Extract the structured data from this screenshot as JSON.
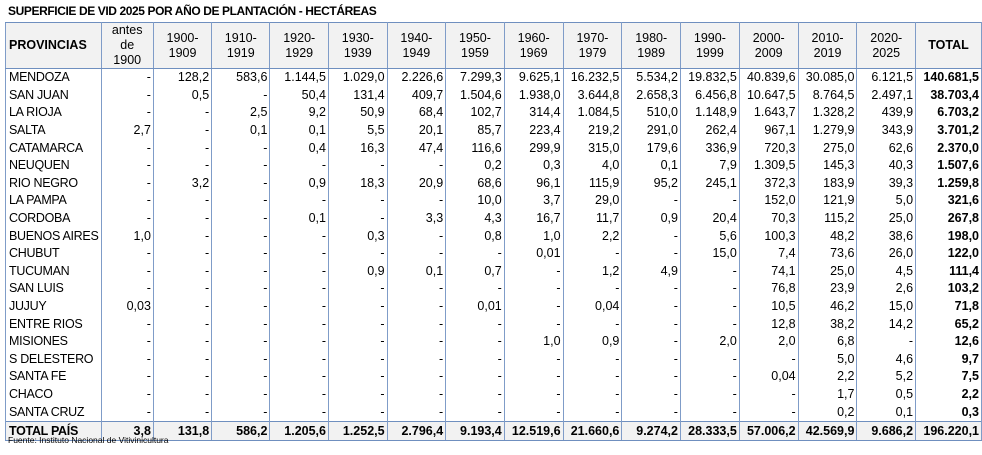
{
  "title": "SUPERFICIE  DE VID 2025 POR AÑO DE PLANTACIÓN  - HECTÁREAS",
  "headers": [
    "PROVINCIAS",
    "antes de 1900",
    "1900-1909",
    "1910-1919",
    "1920-1929",
    "1930-1939",
    "1940-1949",
    "1950-1959",
    "1960-1969",
    "1970-1979",
    "1980-1989",
    "1990-1999",
    "2000-2009",
    "2010-2019",
    "2020-2025",
    "TOTAL"
  ],
  "rows": [
    [
      "MENDOZA",
      "-",
      "128,2",
      "583,6",
      "1.144,5",
      "1.029,0",
      "2.226,6",
      "7.299,3",
      "9.625,1",
      "16.232,5",
      "5.534,2",
      "19.832,5",
      "40.839,6",
      "30.085,0",
      "6.121,5",
      "140.681,5"
    ],
    [
      "SAN JUAN",
      "-",
      "0,5",
      "-",
      "50,4",
      "131,4",
      "409,7",
      "1.504,6",
      "1.938,0",
      "3.644,8",
      "2.658,3",
      "6.456,8",
      "10.647,5",
      "8.764,5",
      "2.497,1",
      "38.703,4"
    ],
    [
      "LA RIOJA",
      "-",
      "-",
      "2,5",
      "9,2",
      "50,9",
      "68,4",
      "102,7",
      "314,4",
      "1.084,5",
      "510,0",
      "1.148,9",
      "1.643,7",
      "1.328,2",
      "439,9",
      "6.703,2"
    ],
    [
      "SALTA",
      "2,7",
      "-",
      "0,1",
      "0,1",
      "5,5",
      "20,1",
      "85,7",
      "223,4",
      "219,2",
      "291,0",
      "262,4",
      "967,1",
      "1.279,9",
      "343,9",
      "3.701,2"
    ],
    [
      "CATAMARCA",
      "-",
      "-",
      "-",
      "0,4",
      "16,3",
      "47,4",
      "116,6",
      "299,9",
      "315,0",
      "179,6",
      "336,9",
      "720,3",
      "275,0",
      "62,6",
      "2.370,0"
    ],
    [
      "NEUQUEN",
      "-",
      "-",
      "-",
      "-",
      "-",
      "-",
      "0,2",
      "0,3",
      "4,0",
      "0,1",
      "7,9",
      "1.309,5",
      "145,3",
      "40,3",
      "1.507,6"
    ],
    [
      "RIO NEGRO",
      "-",
      "3,2",
      "-",
      "0,9",
      "18,3",
      "20,9",
      "68,6",
      "96,1",
      "115,9",
      "95,2",
      "245,1",
      "372,3",
      "183,9",
      "39,3",
      "1.259,8"
    ],
    [
      "LA PAMPA",
      "-",
      "-",
      "-",
      "-",
      "-",
      "-",
      "10,0",
      "3,7",
      "29,0",
      "-",
      "-",
      "152,0",
      "121,9",
      "5,0",
      "321,6"
    ],
    [
      "CORDOBA",
      "-",
      "-",
      "-",
      "0,1",
      "-",
      "3,3",
      "4,3",
      "16,7",
      "11,7",
      "0,9",
      "20,4",
      "70,3",
      "115,2",
      "25,0",
      "267,8"
    ],
    [
      "BUENOS AIRES",
      "1,0",
      "-",
      "-",
      "-",
      "0,3",
      "-",
      "0,8",
      "1,0",
      "2,2",
      "-",
      "5,6",
      "100,3",
      "48,2",
      "38,6",
      "198,0"
    ],
    [
      "CHUBUT",
      "-",
      "-",
      "-",
      "-",
      "-",
      "-",
      "-",
      "0,01",
      "-",
      "-",
      "15,0",
      "7,4",
      "73,6",
      "26,0",
      "122,0"
    ],
    [
      "TUCUMAN",
      "-",
      "-",
      "-",
      "-",
      "0,9",
      "0,1",
      "0,7",
      "-",
      "1,2",
      "4,9",
      "-",
      "74,1",
      "25,0",
      "4,5",
      "111,4"
    ],
    [
      "SAN LUIS",
      "-",
      "-",
      "-",
      "-",
      "-",
      "-",
      "-",
      "-",
      "-",
      "-",
      "-",
      "76,8",
      "23,9",
      "2,6",
      "103,2"
    ],
    [
      "JUJUY",
      "0,03",
      "-",
      "-",
      "-",
      "-",
      "-",
      "0,01",
      "-",
      "0,04",
      "-",
      "-",
      "10,5",
      "46,2",
      "15,0",
      "71,8"
    ],
    [
      "ENTRE RIOS",
      "-",
      "-",
      "-",
      "-",
      "-",
      "-",
      "-",
      "-",
      "-",
      "-",
      "-",
      "12,8",
      "38,2",
      "14,2",
      "65,2"
    ],
    [
      "MISIONES",
      "-",
      "-",
      "-",
      "-",
      "-",
      "-",
      "-",
      "1,0",
      "0,9",
      "-",
      "2,0",
      "2,0",
      "6,8",
      "-",
      "12,6"
    ],
    [
      "S DELESTERO",
      "-",
      "-",
      "-",
      "-",
      "-",
      "-",
      "-",
      "-",
      "-",
      "-",
      "-",
      "-",
      "5,0",
      "4,6",
      "9,7"
    ],
    [
      "SANTA FE",
      "-",
      "-",
      "-",
      "-",
      "-",
      "-",
      "-",
      "-",
      "-",
      "-",
      "-",
      "0,04",
      "2,2",
      "5,2",
      "7,5"
    ],
    [
      "CHACO",
      "-",
      "-",
      "-",
      "-",
      "-",
      "-",
      "-",
      "-",
      "-",
      "-",
      "-",
      "-",
      "1,7",
      "0,5",
      "2,2"
    ],
    [
      "SANTA CRUZ",
      "-",
      "-",
      "-",
      "-",
      "-",
      "-",
      "-",
      "-",
      "-",
      "-",
      "-",
      "-",
      "0,2",
      "0,1",
      "0,3"
    ]
  ],
  "total_row": [
    "TOTAL PAÍS",
    "3,8",
    "131,8",
    "586,2",
    "1.205,6",
    "1.252,5",
    "2.796,4",
    "9.193,4",
    "12.519,6",
    "21.660,6",
    "9.274,2",
    "28.333,5",
    "57.006,2",
    "42.569,9",
    "9.686,2",
    "196.220,1"
  ],
  "source": "Fuente: Instituto Nacional  de Vitivinicultura",
  "colors": {
    "border": "#6f8fbf",
    "header_bg": "#f2f2f2"
  }
}
